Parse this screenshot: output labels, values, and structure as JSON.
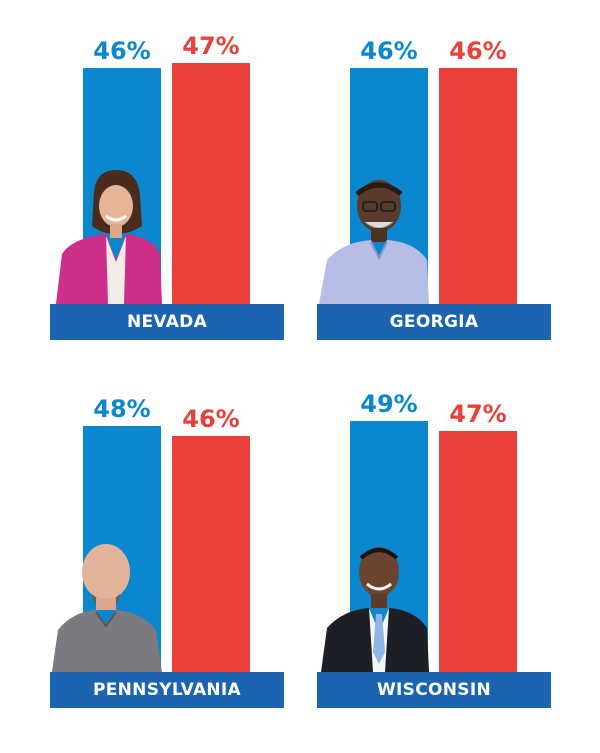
{
  "colors": {
    "dem": "#0b87cf",
    "rep": "#e8413a",
    "label_bg": "#1b65b0"
  },
  "chart_data": {
    "type": "bar",
    "ylim": [
      0,
      50
    ],
    "states": [
      {
        "name": "NEVADA",
        "dem_value": 46,
        "rep_value": 47,
        "dem_label": "46%",
        "rep_label": "47%",
        "photo": "woman-pink-blazer"
      },
      {
        "name": "GEORGIA",
        "dem_value": 46,
        "rep_value": 46,
        "dem_label": "46%",
        "rep_label": "46%",
        "photo": "man-glasses-checked-shirt"
      },
      {
        "name": "PENNSYLVANIA",
        "dem_value": 48,
        "rep_value": 46,
        "dem_label": "48%",
        "rep_label": "46%",
        "photo": "bald-man-goatee-gray-shirt"
      },
      {
        "name": "WISCONSIN",
        "dem_value": 49,
        "rep_value": 47,
        "dem_label": "49%",
        "rep_label": "47%",
        "photo": "man-suit-blue-tie"
      }
    ]
  }
}
